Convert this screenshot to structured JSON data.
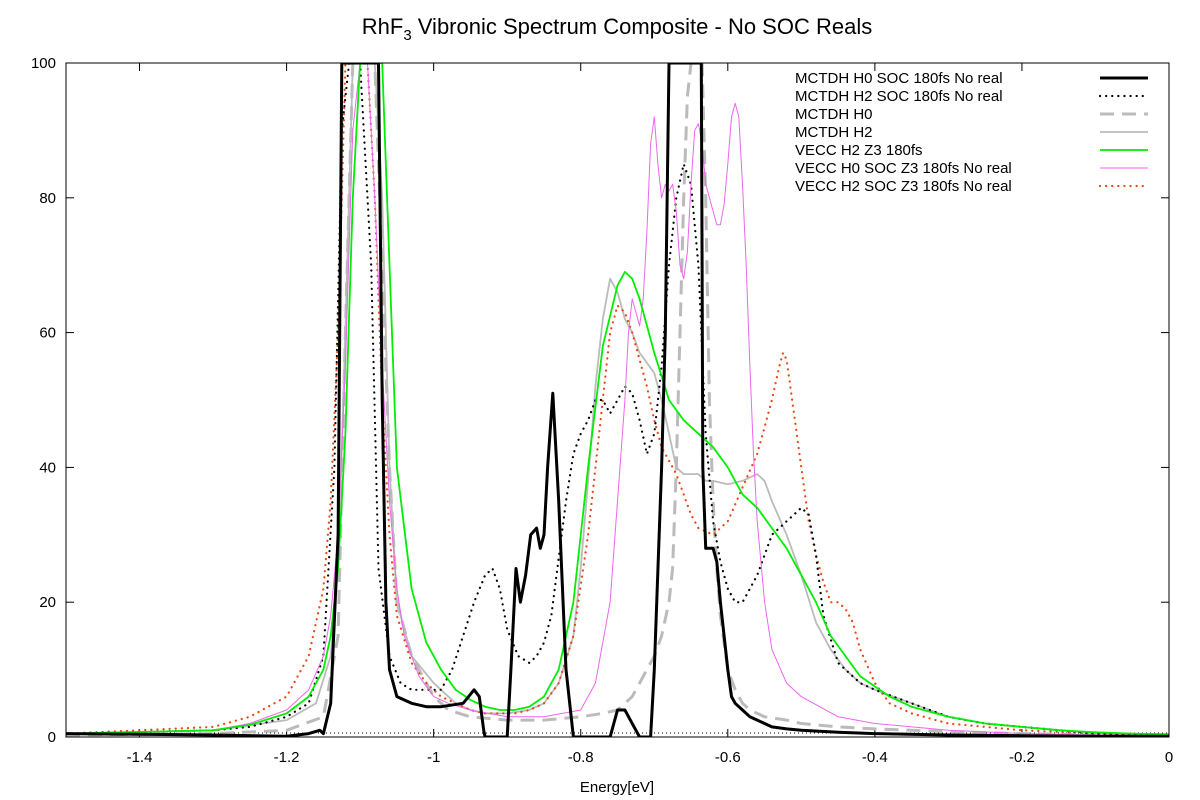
{
  "chart_data": {
    "type": "line",
    "title": "RhF",
    "title_subscript": "3",
    "title_rest": " Vibronic Spectrum Composite - No SOC Reals",
    "xlabel": "Energy[eV]",
    "ylabel": "",
    "xlim": [
      -1.5,
      0
    ],
    "ylim": [
      0,
      100
    ],
    "x_ticks": [
      -1.4,
      -1.2,
      -1,
      -0.8,
      -0.6,
      -0.4,
      -0.2,
      0
    ],
    "x_tick_labels": [
      "-1.4",
      "-1.2",
      "-1",
      "-0.8",
      "-0.6",
      "-0.4",
      "-0.2",
      "0"
    ],
    "y_ticks": [
      0,
      20,
      40,
      60,
      80,
      100
    ],
    "y_tick_labels": [
      "0",
      "20",
      "40",
      "60",
      "80",
      "100"
    ],
    "grid": false,
    "legend_position": "top-right",
    "series": [
      {
        "name": "MCTDH   H0 SOC 180fs No real",
        "color": "#000000",
        "style": "solid-thick",
        "x": [
          -1.5,
          -1.3,
          -1.2,
          -1.17,
          -1.155,
          -1.15,
          -1.14,
          -1.13,
          -1.125,
          -1.12,
          -1.115,
          -1.105,
          -1.09,
          -1.08,
          -1.075,
          -1.07,
          -1.065,
          -1.06,
          -1.05,
          -1.03,
          -1.01,
          -0.99,
          -0.96,
          -0.945,
          -0.938,
          -0.932,
          -0.93,
          -0.9,
          -0.895,
          -0.888,
          -0.882,
          -0.875,
          -0.868,
          -0.86,
          -0.855,
          -0.85,
          -0.845,
          -0.838,
          -0.83,
          -0.82,
          -0.81,
          -0.805,
          -0.8,
          -0.76,
          -0.755,
          -0.75,
          -0.74,
          -0.73,
          -0.72,
          -0.71,
          -0.705,
          -0.7,
          -0.69,
          -0.685,
          -0.68,
          -0.675,
          -0.67,
          -0.66,
          -0.65,
          -0.64,
          -0.638,
          -0.636,
          -0.635,
          -0.634,
          -0.63,
          -0.625,
          -0.62,
          -0.615,
          -0.61,
          -0.6,
          -0.595,
          -0.59,
          -0.58,
          -0.57,
          -0.56,
          -0.55,
          -0.54,
          -0.52,
          -0.5,
          -0.45,
          -0.4,
          -0.3,
          -0.2,
          -0.1,
          0
        ],
        "y": [
          0.5,
          0.3,
          0.1,
          0.5,
          1.0,
          0.5,
          5,
          30,
          100,
          100,
          100,
          100,
          100,
          100,
          100,
          50,
          20,
          10,
          6,
          5,
          4.5,
          4.5,
          5,
          7,
          6,
          1,
          0,
          0,
          10,
          25,
          20,
          24,
          30,
          31,
          28,
          30,
          40,
          51,
          35,
          10,
          0,
          0,
          0,
          0,
          2,
          4,
          4,
          2,
          0,
          0,
          0,
          10,
          40,
          60,
          100,
          100,
          100,
          100,
          100,
          100,
          100,
          100,
          70,
          40,
          28,
          28,
          28,
          26,
          20,
          10,
          6,
          5,
          4,
          3,
          2.5,
          2,
          1.5,
          1.2,
          1.0,
          0.7,
          0.5,
          0.3,
          0.2,
          0.1,
          0.1
        ]
      },
      {
        "name": "MCTDH   H2 SOC 180fs No real",
        "color": "#000000",
        "style": "dotted",
        "x": [
          -1.5,
          -1.3,
          -1.25,
          -1.2,
          -1.17,
          -1.15,
          -1.135,
          -1.125,
          -1.115,
          -1.11,
          -1.1,
          -1.085,
          -1.075,
          -1.06,
          -1.045,
          -1.03,
          -1.01,
          -0.99,
          -0.975,
          -0.96,
          -0.945,
          -0.93,
          -0.92,
          -0.91,
          -0.9,
          -0.885,
          -0.87,
          -0.86,
          -0.85,
          -0.84,
          -0.82,
          -0.81,
          -0.8,
          -0.79,
          -0.78,
          -0.77,
          -0.76,
          -0.75,
          -0.74,
          -0.73,
          -0.72,
          -0.71,
          -0.7,
          -0.69,
          -0.68,
          -0.67,
          -0.66,
          -0.65,
          -0.64,
          -0.63,
          -0.62,
          -0.61,
          -0.6,
          -0.59,
          -0.58,
          -0.57,
          -0.56,
          -0.55,
          -0.54,
          -0.53,
          -0.52,
          -0.51,
          -0.5,
          -0.49,
          -0.48,
          -0.47,
          -0.45,
          -0.42,
          -0.4,
          -0.35,
          -0.3,
          -0.25,
          -0.2,
          -0.1,
          0
        ],
        "y": [
          0.5,
          1.0,
          1.5,
          3,
          5,
          12,
          40,
          90,
          100,
          100,
          100,
          70,
          25,
          12,
          8,
          7,
          7,
          7,
          10,
          15,
          20,
          24,
          25,
          22,
          16,
          12,
          11,
          12,
          14,
          18,
          35,
          42,
          45,
          47,
          50,
          50,
          48,
          50,
          52,
          51,
          47,
          42,
          45,
          55,
          70,
          80,
          85,
          82,
          70,
          45,
          32,
          26,
          22,
          20,
          20,
          22,
          24,
          27,
          30,
          31,
          32,
          33,
          34,
          33,
          27,
          18,
          11,
          8,
          7,
          5,
          3,
          2,
          1.5,
          0.5,
          0.2
        ]
      },
      {
        "name": "MCTDH   H0",
        "color": "#bbbbbb",
        "style": "dashed",
        "x": [
          -1.5,
          -1.3,
          -1.2,
          -1.15,
          -1.13,
          -1.12,
          -1.11,
          -1.1,
          -1.08,
          -1.07,
          -1.06,
          -1.05,
          -1.03,
          -1.0,
          -0.98,
          -0.95,
          -0.9,
          -0.85,
          -0.8,
          -0.77,
          -0.75,
          -0.73,
          -0.72,
          -0.71,
          -0.7,
          -0.69,
          -0.68,
          -0.675,
          -0.67,
          -0.665,
          -0.66,
          -0.655,
          -0.65,
          -0.645,
          -0.64,
          -0.635,
          -0.63,
          -0.625,
          -0.62,
          -0.615,
          -0.61,
          -0.6,
          -0.59,
          -0.58,
          -0.57,
          -0.56,
          -0.55,
          -0.52,
          -0.5,
          -0.45,
          -0.4,
          -0.3,
          -0.2,
          -0.1,
          0
        ],
        "y": [
          0.3,
          0.5,
          1,
          3,
          15,
          60,
          100,
          100,
          100,
          70,
          40,
          20,
          12,
          6,
          4,
          3,
          2.5,
          2.5,
          3,
          3.5,
          4,
          6,
          8,
          10,
          12,
          15,
          20,
          25,
          40,
          60,
          80,
          95,
          100,
          100,
          100,
          100,
          80,
          50,
          35,
          25,
          18,
          10,
          7,
          5,
          4,
          3.5,
          3,
          2.5,
          2,
          1.5,
          1.2,
          0.8,
          0.5,
          0.3,
          0.2
        ]
      },
      {
        "name": "MCTDH   H2",
        "color": "#bbbbbb",
        "style": "solid",
        "x": [
          -1.5,
          -1.3,
          -1.2,
          -1.16,
          -1.14,
          -1.13,
          -1.12,
          -1.11,
          -1.1,
          -1.09,
          -1.08,
          -1.07,
          -1.06,
          -1.05,
          -1.03,
          -1.0,
          -0.97,
          -0.95,
          -0.93,
          -0.9,
          -0.87,
          -0.85,
          -0.83,
          -0.81,
          -0.8,
          -0.79,
          -0.78,
          -0.77,
          -0.76,
          -0.75,
          -0.74,
          -0.73,
          -0.72,
          -0.7,
          -0.69,
          -0.68,
          -0.67,
          -0.66,
          -0.65,
          -0.64,
          -0.63,
          -0.62,
          -0.6,
          -0.58,
          -0.56,
          -0.55,
          -0.54,
          -0.52,
          -0.5,
          -0.48,
          -0.46,
          -0.44,
          -0.42,
          -0.4,
          -0.35,
          -0.3,
          -0.25,
          -0.2,
          -0.1,
          0
        ],
        "y": [
          0.5,
          1,
          2.5,
          5,
          12,
          25,
          60,
          100,
          100,
          100,
          100,
          80,
          40,
          20,
          12,
          8,
          5,
          4,
          3.5,
          3.5,
          4,
          5,
          8,
          15,
          25,
          38,
          52,
          62,
          68,
          66,
          62,
          60,
          57,
          54,
          50,
          45,
          40,
          39,
          39,
          39,
          38,
          38,
          37.5,
          38,
          39,
          38,
          35,
          30,
          24,
          17,
          13,
          10,
          8,
          7,
          5,
          3,
          2,
          1.5,
          0.6,
          0.3
        ]
      },
      {
        "name": "VECC    H2     Z3 180fs",
        "color": "#00ee00",
        "style": "solid",
        "x": [
          -1.5,
          -1.3,
          -1.25,
          -1.2,
          -1.17,
          -1.15,
          -1.14,
          -1.13,
          -1.12,
          -1.11,
          -1.1,
          -1.09,
          -1.08,
          -1.07,
          -1.06,
          -1.05,
          -1.03,
          -1.01,
          -0.99,
          -0.97,
          -0.95,
          -0.93,
          -0.91,
          -0.89,
          -0.87,
          -0.85,
          -0.83,
          -0.81,
          -0.79,
          -0.77,
          -0.75,
          -0.74,
          -0.73,
          -0.72,
          -0.7,
          -0.68,
          -0.66,
          -0.64,
          -0.62,
          -0.6,
          -0.58,
          -0.56,
          -0.54,
          -0.52,
          -0.5,
          -0.48,
          -0.46,
          -0.44,
          -0.42,
          -0.4,
          -0.38,
          -0.35,
          -0.3,
          -0.25,
          -0.2,
          -0.15,
          -0.1,
          -0.05,
          0
        ],
        "y": [
          0.5,
          1,
          1.8,
          3.5,
          6,
          10,
          15,
          25,
          45,
          80,
          100,
          100,
          100,
          100,
          70,
          40,
          22,
          14,
          10,
          7,
          5.5,
          4.5,
          4,
          4,
          4.5,
          6,
          10,
          20,
          40,
          58,
          67,
          69,
          68,
          65,
          57,
          50,
          47,
          45,
          43,
          40,
          36,
          34,
          31,
          28,
          24,
          20,
          15,
          12,
          9,
          7.5,
          6,
          4.5,
          3,
          2,
          1.5,
          1,
          0.7,
          0.5,
          0.4
        ]
      },
      {
        "name": "VECC    H0 SOC Z3 180fs No real",
        "color": "#ee66ee",
        "style": "solid-thin",
        "x": [
          -1.5,
          -1.3,
          -1.25,
          -1.2,
          -1.17,
          -1.15,
          -1.14,
          -1.13,
          -1.12,
          -1.11,
          -1.1,
          -1.09,
          -1.08,
          -1.07,
          -1.06,
          -1.05,
          -1.04,
          -1.02,
          -1.0,
          -0.98,
          -0.95,
          -0.9,
          -0.85,
          -0.8,
          -0.78,
          -0.76,
          -0.75,
          -0.74,
          -0.735,
          -0.73,
          -0.725,
          -0.72,
          -0.715,
          -0.71,
          -0.705,
          -0.7,
          -0.695,
          -0.69,
          -0.685,
          -0.68,
          -0.675,
          -0.67,
          -0.665,
          -0.66,
          -0.655,
          -0.65,
          -0.645,
          -0.64,
          -0.635,
          -0.63,
          -0.625,
          -0.62,
          -0.615,
          -0.61,
          -0.605,
          -0.6,
          -0.595,
          -0.59,
          -0.585,
          -0.58,
          -0.575,
          -0.57,
          -0.565,
          -0.56,
          -0.55,
          -0.54,
          -0.52,
          -0.5,
          -0.45,
          -0.4,
          -0.3,
          -0.2,
          -0.1,
          0
        ],
        "y": [
          0.5,
          1,
          2,
          4,
          7,
          12,
          18,
          30,
          55,
          90,
          100,
          100,
          80,
          55,
          35,
          22,
          15,
          9,
          6,
          5,
          4,
          3,
          3,
          4,
          8,
          20,
          35,
          50,
          60,
          65,
          63,
          61,
          65,
          75,
          88,
          92,
          85,
          80,
          82,
          81,
          82,
          78,
          70,
          68,
          72,
          82,
          90,
          91,
          88,
          82,
          80,
          78,
          76,
          76,
          79,
          85,
          92,
          94,
          92,
          82,
          70,
          55,
          42,
          32,
          20,
          13,
          8,
          6,
          3,
          2,
          1,
          0.5,
          0.3,
          0.2
        ]
      },
      {
        "name": "VECC    H2 SOC Z3 180fs No real",
        "color": "#ee4411",
        "style": "dotted",
        "x": [
          -1.5,
          -1.3,
          -1.25,
          -1.2,
          -1.17,
          -1.15,
          -1.14,
          -1.13,
          -1.125,
          -1.12,
          -1.11,
          -1.1,
          -1.09,
          -1.08,
          -1.07,
          -1.06,
          -1.05,
          -1.03,
          -1.01,
          -0.99,
          -0.97,
          -0.95,
          -0.93,
          -0.91,
          -0.89,
          -0.87,
          -0.85,
          -0.83,
          -0.81,
          -0.79,
          -0.77,
          -0.76,
          -0.75,
          -0.74,
          -0.73,
          -0.72,
          -0.71,
          -0.7,
          -0.69,
          -0.68,
          -0.67,
          -0.66,
          -0.65,
          -0.64,
          -0.62,
          -0.6,
          -0.58,
          -0.56,
          -0.55,
          -0.54,
          -0.53,
          -0.525,
          -0.52,
          -0.515,
          -0.51,
          -0.5,
          -0.49,
          -0.48,
          -0.47,
          -0.46,
          -0.45,
          -0.44,
          -0.43,
          -0.42,
          -0.4,
          -0.38,
          -0.35,
          -0.3,
          -0.25,
          -0.2,
          -0.1,
          0
        ],
        "y": [
          0.5,
          1.5,
          3,
          6,
          12,
          22,
          35,
          60,
          80,
          100,
          100,
          100,
          100,
          80,
          50,
          30,
          18,
          11,
          8,
          6,
          5,
          4,
          3.5,
          3.5,
          3.5,
          4,
          5,
          8,
          15,
          30,
          50,
          60,
          64,
          63,
          60,
          56,
          52,
          47,
          43,
          41,
          39,
          36,
          33,
          31,
          30,
          32,
          37,
          42,
          46,
          50,
          55,
          57,
          56,
          52,
          48,
          40,
          32,
          27,
          23,
          20,
          20,
          19,
          17,
          13,
          8,
          5,
          3.5,
          2,
          1.5,
          1,
          0.5,
          0.3
        ]
      }
    ]
  }
}
